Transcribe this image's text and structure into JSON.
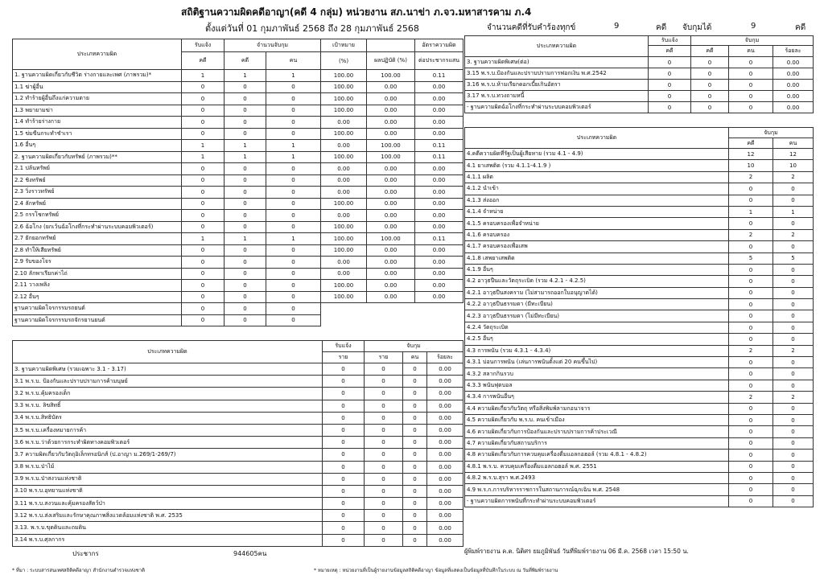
{
  "header": {
    "title": "สถิติฐานความผิดคดีอาญา(คดี 4 กลุ่ม) หน่วยงาน สภ.นาข่า ภ.จว.มหาสารคาม ภ.4",
    "period": "ตั้งแต่วันที่ 01 กุมภาพันธ์ 2568 ถึง 28 กุมภาพันธ์ 2568",
    "complaint_label": "จำนวนคดีที่รับคำร้องทุกข์",
    "complaint_count": "9",
    "complaint_unit": "คดี",
    "arrest_label": "จับกุมได้",
    "arrest_count": "9",
    "arrest_unit": "คดี"
  },
  "table_a": {
    "headers": {
      "type": "ประเภทความผิด",
      "reported": "รับแจ้ง",
      "arrested": "จำนวนจับกุม",
      "target": "เป้าหมาย",
      "rate": "อัตราความผิด",
      "reported_cases": "คดี",
      "arrested_cases": "คดี",
      "arrested_persons": "คน",
      "target_unit": "(%)",
      "result": "ผลปฏิบัติ (%)",
      "rate_unit": "ต่อประชากรแสน"
    },
    "rows": [
      [
        "1. ฐานความผิดเกี่ยวกับชีวิต ร่างกายและเพศ (ภาพรวม)*",
        "1",
        "1",
        "1",
        "100.00",
        "100.00",
        "0.11"
      ],
      [
        "1.1 ฆ่าผู้อื่น",
        "0",
        "0",
        "0",
        "100.00",
        "0.00",
        "0.00"
      ],
      [
        "1.2 ทำร้ายผู้อื่นถึงแก่ความตาย",
        "0",
        "0",
        "0",
        "100.00",
        "0.00",
        "0.00"
      ],
      [
        "1.3 พยายามฆ่า",
        "0",
        "0",
        "0",
        "100.00",
        "0.00",
        "0.00"
      ],
      [
        "1.4 ทำร้ายร่างกาย",
        "0",
        "0",
        "0",
        "0.00",
        "0.00",
        "0.00"
      ],
      [
        "1.5 ข่มขืนกระทำชำเรา",
        "0",
        "0",
        "0",
        "100.00",
        "0.00",
        "0.00"
      ],
      [
        "1.6 อื่นๆ",
        "1",
        "1",
        "1",
        "0.00",
        "100.00",
        "0.11"
      ],
      [
        "2. ฐานความผิดเกี่ยวกับทรัพย์ (ภาพรวม)**",
        "1",
        "1",
        "1",
        "100.00",
        "100.00",
        "0.11"
      ],
      [
        "2.1 ปล้นทรัพย์",
        "0",
        "0",
        "0",
        "0.00",
        "0.00",
        "0.00"
      ],
      [
        "2.2 ชิงทรัพย์",
        "0",
        "0",
        "0",
        "0.00",
        "0.00",
        "0.00"
      ],
      [
        "2.3 วิ่งราวทรัพย์",
        "0",
        "0",
        "0",
        "0.00",
        "0.00",
        "0.00"
      ],
      [
        "2.4 ลักทรัพย์",
        "0",
        "0",
        "0",
        "100.00",
        "0.00",
        "0.00"
      ],
      [
        "2.5 กรรโชกทรัพย์",
        "0",
        "0",
        "0",
        "0.00",
        "0.00",
        "0.00"
      ],
      [
        "2.6 ฉ้อโกง (ยกเว้นฉ้อโกงที่กระทำผ่านระบบคอมพิวเตอร์)",
        "0",
        "0",
        "0",
        "100.00",
        "0.00",
        "0.00"
      ],
      [
        "2.7 ยักยอกทรัพย์",
        "1",
        "1",
        "1",
        "100.00",
        "100.00",
        "0.11"
      ],
      [
        "2.8 ทำให้เสียทรัพย์",
        "0",
        "0",
        "0",
        "100.00",
        "0.00",
        "0.00"
      ],
      [
        "2.9 รับของโจร",
        "0",
        "0",
        "0",
        "0.00",
        "0.00",
        "0.00"
      ],
      [
        "2.10 ลักพาเรียกค่าไถ่",
        "0",
        "0",
        "0",
        "0.00",
        "0.00",
        "0.00"
      ],
      [
        "2.11 วางเพลิง",
        "0",
        "0",
        "0",
        "100.00",
        "0.00",
        "0.00"
      ],
      [
        "2.12 อื่นๆ",
        "0",
        "0",
        "0",
        "100.00",
        "0.00",
        "0.00"
      ],
      [
        "ฐานความผิดโจรกรรมรถยนต์",
        "0",
        "0",
        "0"
      ],
      [
        "ฐานความผิดโจรกรรมรถจักรยานยนต์",
        "0",
        "0",
        "0"
      ]
    ]
  },
  "table_b": {
    "headers": {
      "type": "ประเภทความผิด",
      "reported": "รับแจ้ง",
      "arrested": "จับกุม",
      "reported_unit": "ราย",
      "arrested_unit": "ราย",
      "persons": "คน",
      "percent": "ร้อยละ"
    },
    "rows": [
      [
        "3. ฐานความผิดพิเศษ (รวมเฉพาะ 3.1 - 3.17)",
        "0",
        "0",
        "0",
        "0.00"
      ],
      [
        "3.1 พ.ร.บ. ป้องกันและปราบปรามการค้ามนุษย์",
        "0",
        "0",
        "0",
        "0.00"
      ],
      [
        "3.2 พ.ร.บ.คุ้มครองเด็ก",
        "0",
        "0",
        "0",
        "0.00"
      ],
      [
        "3.3 พ.ร.บ. ลิขสิทธิ์",
        "0",
        "0",
        "0",
        "0.00"
      ],
      [
        "3.4 พ.ร.บ.สิทธิบัตร",
        "0",
        "0",
        "0",
        "0.00"
      ],
      [
        "3.5 พ.ร.บ.เครื่องหมายการค้า",
        "0",
        "0",
        "0",
        "0.00"
      ],
      [
        "3.6 พ.ร.บ.ว่าด้วยการกระทำผิดทางคอมพิวเตอร์",
        "0",
        "0",
        "0",
        "0.00"
      ],
      [
        "3.7 ความผิดเกี่ยวกับวัตถุอิเล็กทรอนิกส์ (ป.อาญา ม.269/1-269/7)",
        "0",
        "0",
        "0",
        "0.00"
      ],
      [
        "3.8 พ.ร.บ.ป่าไม้",
        "0",
        "0",
        "0",
        "0.00"
      ],
      [
        "3.9 พ.ร.บ.ป่าสงวนแห่งชาติ",
        "0",
        "0",
        "0",
        "0.00"
      ],
      [
        "3.10 พ.ร.บ.อุทยานแห่งชาติ",
        "0",
        "0",
        "0",
        "0.00"
      ],
      [
        "3.11 พ.ร.บ.สงวนและคุ้มครองสัตว์ป่า",
        "0",
        "0",
        "0",
        "0.00"
      ],
      [
        "3.12 พ.ร.บ.ส่งเสริมและรักษาคุณภาพสิ่งแวดล้อมแห่งชาติ พ.ศ. 2535",
        "0",
        "0",
        "0",
        "0.00"
      ],
      [
        "3.13. พ.ร.บ.ขุดดินและถมดิน",
        "0",
        "0",
        "0",
        "0.00"
      ],
      [
        "3.14 พ.ร.บ.ศุลกากร",
        "0",
        "0",
        "0",
        "0.00"
      ]
    ]
  },
  "table_c": {
    "headers": {
      "type": "ประเภทความผิด",
      "reported": "รับแจ้ง",
      "arrested": "จับกุม",
      "reported_unit": "คดี",
      "arrested_unit": "คดี",
      "persons": "คน",
      "percent": "ร้อยละ"
    },
    "rows": [
      [
        "3. ฐานความผิดพิเศษ(ต่อ)",
        "0",
        "0",
        "0",
        "0.00"
      ],
      [
        "3.15 พ.ร.บ.ป้องกันและปราบปรามการฟอกเงิน พ.ศ.2542",
        "0",
        "0",
        "0",
        "0.00"
      ],
      [
        "3.16 พ.ร.บ.ห้ามเรียกดอกเบี้ยเกินอัตรา",
        "0",
        "0",
        "0",
        "0.00"
      ],
      [
        "3.17 พ.ร.บ.ทวงถามหนี้",
        "0",
        "0",
        "0",
        "0.00"
      ],
      [
        "- ฐานความผิดฉ้อโกงที่กระทำผ่านระบบคอมพิวเตอร์",
        "0",
        "0",
        "0",
        "0.00"
      ]
    ]
  },
  "table_d": {
    "headers": {
      "type": "ประเภทความผิด",
      "arrested": "จับกุม",
      "cases": "คดี",
      "persons": "คน"
    },
    "rows": [
      [
        "4.คดีความผิดที่รัฐเป็นผู้เสียหาย (รวม 4.1 - 4.9)",
        "12",
        "12"
      ],
      [
        "4.1 ยาเสพติด (รวม 4.1.1-4.1.9 )",
        "10",
        "10"
      ],
      [
        "4.1.1 ผลิต",
        "2",
        "2"
      ],
      [
        "4.1.2 นำเข้า",
        "0",
        "0"
      ],
      [
        "4.1.3 ส่งออก",
        "0",
        "0"
      ],
      [
        "4.1.4 จำหน่าย",
        "1",
        "1"
      ],
      [
        "4.1.5 ครอบครองเพื่อจำหน่าย",
        "0",
        "0"
      ],
      [
        "4.1.6 ครอบครอง",
        "2",
        "2"
      ],
      [
        "4.1.7 ครอบครองเพื่อเสพ",
        "0",
        "0"
      ],
      [
        "4.1.8 เสพยาเสพติด",
        "5",
        "5"
      ],
      [
        "4.1.9 อื่นๆ",
        "0",
        "0"
      ],
      [
        "4.2 อาวุธปืนและวัตถุระเบิด (รวม 4.2.1 - 4.2.5)",
        "0",
        "0"
      ],
      [
        "4.2.1 อาวุธปืนสงคราม (ไม่สามารถออกใบอนุญาตได้)",
        "0",
        "0"
      ],
      [
        "4.2.2 อาวุธปืนธรรมดา (มีทะเบียน)",
        "0",
        "0"
      ],
      [
        "4.2.3 อาวุธปืนธรรมดา (ไม่มีทะเบียน)",
        "0",
        "0"
      ],
      [
        "4.2.4 วัตถุระเบิด",
        "0",
        "0"
      ],
      [
        "4.2.5 อื่นๆ",
        "0",
        "0"
      ],
      [
        "4.3 การพนัน (รวม 4.3.1 - 4.3.4)",
        "2",
        "2"
      ],
      [
        "4.3.1 บ่อนการพนัน (เล่นการพนันตั้งแต่ 20 คนขึ้นไป)",
        "0",
        "0"
      ],
      [
        "4.3.2 สลากกินรวบ",
        "0",
        "0"
      ],
      [
        "4.3.3 พนันฟุตบอล",
        "0",
        "0"
      ],
      [
        "4.3.4 การพนันอื่นๆ",
        "2",
        "2"
      ],
      [
        "4.4 ความผิดเกี่ยวกับวัตถุ หรือสิ่งพิมพ์ลามกอนาจาร",
        "0",
        "0"
      ],
      [
        "4.5 ความผิดเกี่ยวกับ พ.ร.บ. คนเข้าเมือง",
        "0",
        "0"
      ],
      [
        "4.6 ความผิดเกี่ยวกับการป้องกันและปราบปรามการค้าประเวณี",
        "0",
        "0"
      ],
      [
        "4.7 ความผิดเกี่ยวกับสถานบริการ",
        "0",
        "0"
      ],
      [
        "4.8 ความผิดเกี่ยวกับการควบคุมเครื่องดื่มแอลกอฮอล์ (รวม 4.8.1 - 4.8.2)",
        "0",
        "0"
      ],
      [
        "4.8.1 พ.ร.บ. ควบคุมเครื่องดื่มแอลกอฮอล์ พ.ศ. 2551",
        "0",
        "0"
      ],
      [
        "4.8.2 พ.ร.บ.สุรา พ.ศ.2493",
        "0",
        "0"
      ],
      [
        "4.9 พ.ร.ก.การบริหารราชการในสถานการณ์ฉุกเฉิน พ.ศ. 2548",
        "0",
        "0"
      ],
      [
        "- ฐานความผิดการพนันที่กระทำผ่านระบบคอมพิวเตอร์",
        "0",
        "0"
      ]
    ]
  },
  "footer": {
    "population_label": "ประชากร",
    "population": "944605คน",
    "printed_by": "ผู้พิมพ์รายงาน ค.ต. นิติศร ยมภูมิพันธ์ วันที่พิมพ์รายงาน 06 มี.ค. 2568 เวลา 15:50 น.",
    "note_left": "* ที่มา : ระบบสารสนเทศสถิติคดีอาญา สำนักงานตำรวจแห่งชาติ",
    "note_right": "* หมายเหตุ : หน่วยงานที่เป็นผู้รายงานข้อมูลสถิติคดีอาญา ข้อมูลที่แสดงเป็นข้อมูลที่บันทึกในระบบ ณ วันที่พิมพ์รายงาน"
  }
}
